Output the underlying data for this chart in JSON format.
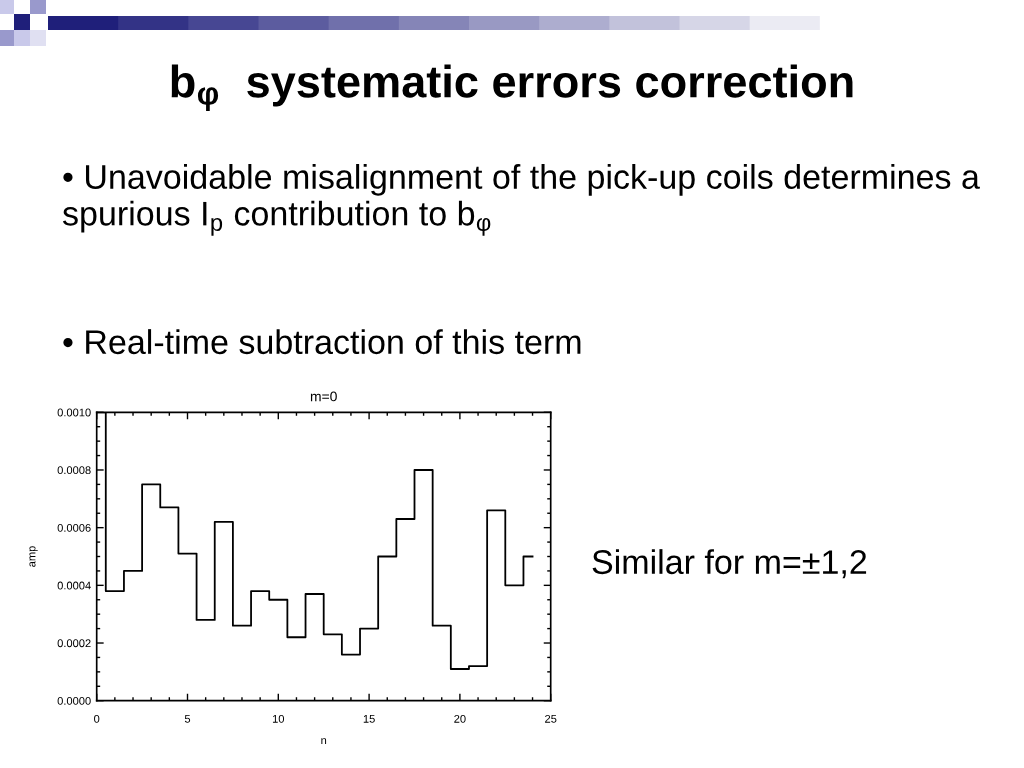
{
  "chart_data": {
    "type": "step",
    "title": "b$_{φ}$  systematic errors correction",
    "subtitle": "m=0",
    "xlabel": "n",
    "ylabel": "amp",
    "annotations": [
      "• Unavoidable misalignment of the pick-up coils determines a spurious I$_{p}$ contribution to b$_{φ}$",
      "• Real-time subtraction of this term",
      "Similar for m=±1,2"
    ],
    "x": [
      0,
      1,
      2,
      3,
      4,
      5,
      6,
      7,
      8,
      9,
      10,
      11,
      12,
      13,
      14,
      15,
      16,
      17,
      18,
      19,
      20,
      21,
      22,
      23,
      24
    ],
    "series": [
      {
        "color": "#000000",
        "values": [
          0.001,
          0.00038,
          0.00045,
          0.00075,
          0.00067,
          0.00051,
          0.00028,
          0.00062,
          0.00026,
          0.00038,
          0.00035,
          0.00022,
          0.00037,
          0.00023,
          0.00016,
          0.00025,
          0.0005,
          0.00063,
          0.0008,
          0.00026,
          0.00011,
          0.00012,
          0.00066,
          0.0004,
          0.0005
        ]
      }
    ],
    "xlim": [
      0,
      25
    ],
    "xticks": [
      0,
      5,
      10,
      15,
      20,
      25
    ],
    "ylim": [
      0,
      0.001
    ],
    "yticks": [
      {
        "value": 0,
        "label": "0.0000"
      },
      0.0002,
      0.0004,
      0.0006,
      0.0008,
      {
        "value": 0.001,
        "label": "0.0010"
      }
    ]
  }
}
